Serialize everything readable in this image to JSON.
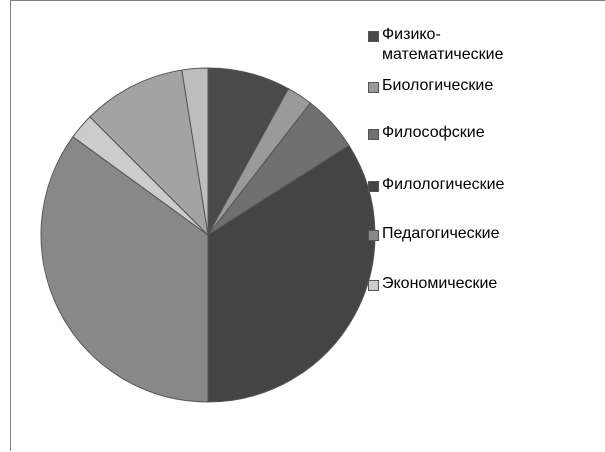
{
  "chart_data": {
    "type": "pie",
    "title": "",
    "legend_position": "right",
    "series": [
      {
        "name": "",
        "slices": [
          {
            "label": "Физико-\nматематические",
            "value": 8,
            "color": "#4a4a4a"
          },
          {
            "label": "Биологические",
            "value": 2.5,
            "color": "#9a9a9a"
          },
          {
            "label": "Философские",
            "value": 5.5,
            "color": "#707070"
          },
          {
            "label": "Филологические",
            "value": 34,
            "color": "#444444"
          },
          {
            "label": "Педагогические",
            "value": 35,
            "color": "#888888"
          },
          {
            "label": "Экономические",
            "value": 2.5,
            "color": "#cccccc"
          },
          {
            "label": "",
            "value": 10,
            "color": "#a3a3a3"
          },
          {
            "label": "",
            "value": 2.5,
            "color": "#bdbdbd"
          }
        ]
      }
    ]
  }
}
